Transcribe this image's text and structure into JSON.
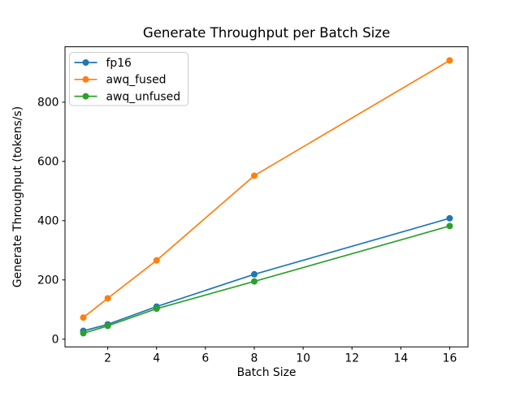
{
  "chart_data": {
    "type": "line",
    "title": "Generate Throughput per Batch Size",
    "xlabel": "Batch Size",
    "ylabel": "Generate Throughput (tokens/s)",
    "x": [
      1,
      2,
      4,
      8,
      16
    ],
    "series": [
      {
        "name": "fp16",
        "color": "#1f77b4",
        "values": [
          28,
          50,
          110,
          219,
          408
        ]
      },
      {
        "name": "awq_fused",
        "color": "#ff7f0e",
        "values": [
          73,
          138,
          266,
          552,
          941
        ]
      },
      {
        "name": "awq_unfused",
        "color": "#2ca02c",
        "values": [
          20,
          45,
          103,
          195,
          382
        ]
      }
    ],
    "xticks": [
      2,
      4,
      6,
      8,
      10,
      12,
      14,
      16
    ],
    "yticks": [
      0,
      200,
      400,
      600,
      800
    ],
    "xlim": [
      0.25,
      16.75
    ],
    "ylim": [
      -26,
      987
    ],
    "grid": false,
    "legend_position": "upper left",
    "marker": "circle",
    "frame_color": "#000000",
    "legend_frame_color": "#cccccc",
    "background_color": "#ffffff"
  }
}
